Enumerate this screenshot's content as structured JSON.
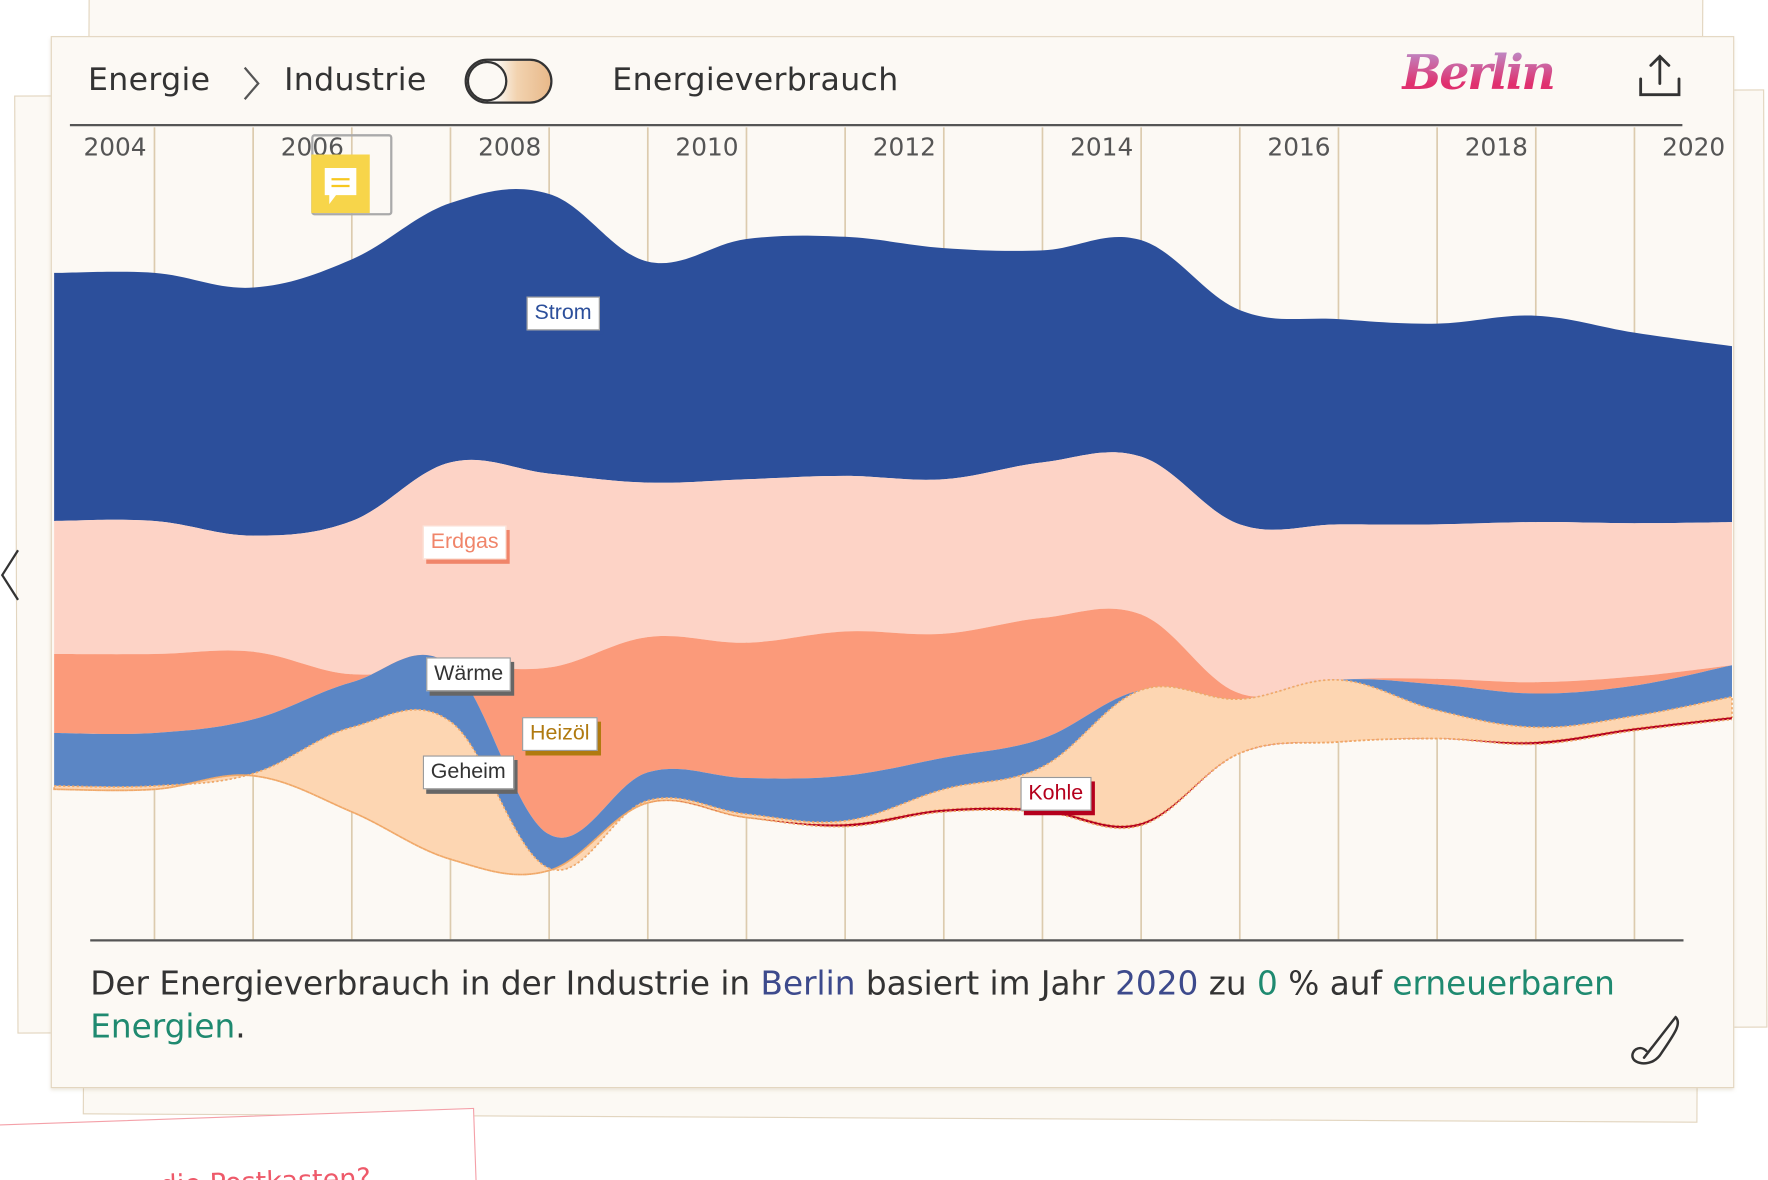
{
  "header": {
    "breadcrumb_root": "Energie",
    "breadcrumb_current": "Industrie",
    "toggle_on": false,
    "title": "Energieverbrauch",
    "region_logo": "Berlin"
  },
  "icons": {
    "share": "share-icon",
    "comment": "comment-icon",
    "edit": "pen-icon",
    "chevron": "chevron-right-icon",
    "prev": "chevron-left-icon"
  },
  "caption": {
    "p1": "Der Energieverbrauch in der Industrie in ",
    "region": "Berlin",
    "p2": " basiert im Jahr ",
    "year": "2020",
    "p3": " zu ",
    "percent": "0",
    "p4": " % auf ",
    "renew1": "erneuerbaren",
    "renew2": "Energien",
    "p5": "."
  },
  "next_card": {
    "text": "die Postkasten?"
  },
  "chart_data": {
    "type": "area",
    "subtype": "streamgraph",
    "title": "Energieverbrauch",
    "x": [
      2004,
      2005,
      2006,
      2007,
      2008,
      2009,
      2010,
      2011,
      2012,
      2013,
      2014,
      2015,
      2016,
      2017,
      2018,
      2019,
      2020
    ],
    "x_tick_labels": [
      "2004",
      "2006",
      "2008",
      "2010",
      "2012",
      "2014",
      "2016",
      "2018",
      "2020"
    ],
    "baseline": [
      100,
      112,
      80,
      38,
      28,
      88,
      75,
      67,
      80,
      80,
      68,
      132,
      142,
      145,
      140,
      152,
      162
    ],
    "series": [
      {
        "name": "Kohle",
        "color": "#b5001d",
        "values": [
          0,
          0,
          0,
          0,
          0,
          0,
          0,
          2,
          2,
          2,
          2,
          0,
          0,
          0,
          2,
          2,
          2
        ]
      },
      {
        "name": "Geheim",
        "color": "#fdd6b2",
        "values": [
          3,
          2,
          75,
          122,
          2,
          2,
          3,
          3,
          18,
          38,
          118,
          48,
          55,
          25,
          13,
          11,
          18
        ]
      },
      {
        "name": "Wärme",
        "color": "#5b86c5",
        "values": [
          47,
          48,
          40,
          50,
          30,
          25,
          32,
          40,
          28,
          25,
          0,
          0,
          0,
          23,
          30,
          27,
          28
        ]
      },
      {
        "name": "Heizöl",
        "color": "#fb9a7a",
        "values": [
          70,
          60,
          7,
          0,
          148,
          120,
          120,
          128,
          110,
          107,
          67,
          5,
          0,
          5,
          10,
          8,
          0
        ]
      },
      {
        "name": "Erdgas",
        "color": "#fdd3c6",
        "values": [
          118,
          103,
          136,
          180,
          172,
          137,
          145,
          138,
          137,
          138,
          140,
          150,
          138,
          137,
          142,
          136,
          127
        ]
      },
      {
        "name": "Strom",
        "color": "#2c4f9b",
        "values": [
          220,
          220,
          232,
          230,
          248,
          196,
          213,
          212,
          205,
          188,
          192,
          190,
          182,
          178,
          183,
          169,
          156
        ]
      }
    ],
    "labels": {
      "Strom": "Strom",
      "Erdgas": "Erdgas",
      "Waerme": "Wärme",
      "Heizoel": "Heizöl",
      "Geheim": "Geheim",
      "Kohle": "Kohle"
    },
    "label_colors": {
      "Strom": "#2c4f9b",
      "Erdgas": "#f0856a",
      "Waerme": "#333333",
      "Heizoel": "#b07a10",
      "Geheim": "#333333",
      "Kohle": "#b5001d"
    },
    "grid": true,
    "legend": "inline"
  }
}
